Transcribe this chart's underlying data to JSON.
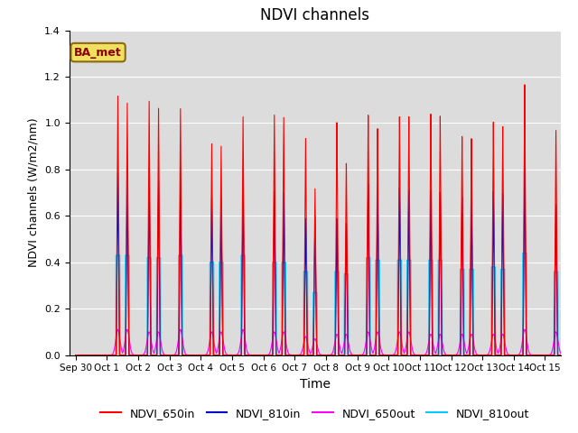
{
  "title": "NDVI channels",
  "xlabel": "Time",
  "ylabel": "NDVI channels (W/m2/nm)",
  "annotation": "BA_met",
  "ylim": [
    0,
    1.4
  ],
  "yticks": [
    0.0,
    0.2,
    0.4,
    0.6,
    0.8,
    1.0,
    1.2,
    1.4
  ],
  "colors": {
    "NDVI_650in": "#ff0000",
    "NDVI_810in": "#0000cc",
    "NDVI_650out": "#ff00ff",
    "NDVI_810out": "#00ccff"
  },
  "legend_labels": [
    "NDVI_650in",
    "NDVI_810in",
    "NDVI_650out",
    "NDVI_810out"
  ],
  "bg_color": "#dcdcdc",
  "peaks_650in": [
    0,
    1.12,
    1.1,
    1.07,
    0.92,
    1.04,
    1.05,
    0.95,
    1.02,
    1.05,
    1.04,
    1.05,
    0.95,
    1.01,
    1.17,
    0.97
  ],
  "peaks_810in": [
    0,
    0.79,
    0.78,
    0.77,
    0.69,
    0.75,
    0.72,
    0.6,
    0.6,
    0.75,
    0.73,
    0.72,
    0.69,
    0.71,
    0.83,
    0.65
  ],
  "peaks_650out": [
    0,
    0.11,
    0.1,
    0.11,
    0.1,
    0.11,
    0.1,
    0.08,
    0.09,
    0.1,
    0.1,
    0.09,
    0.09,
    0.09,
    0.11,
    0.1
  ],
  "peaks_810out": [
    0,
    0.43,
    0.42,
    0.43,
    0.4,
    0.43,
    0.4,
    0.36,
    0.36,
    0.42,
    0.41,
    0.41,
    0.37,
    0.38,
    0.44,
    0.36
  ],
  "peak2_650in": [
    0,
    1.09,
    1.07,
    0.0,
    0.91,
    0.0,
    1.04,
    0.73,
    0.84,
    0.99,
    1.04,
    1.04,
    0.94,
    0.99,
    0.0,
    0.0
  ],
  "peak2_810in": [
    0,
    0.77,
    0.76,
    0.0,
    0.68,
    0.0,
    0.71,
    0.61,
    0.58,
    0.73,
    0.72,
    0.71,
    0.68,
    0.7,
    0.0,
    0.0
  ],
  "peak2_650out": [
    0,
    0.11,
    0.1,
    0.0,
    0.1,
    0.0,
    0.1,
    0.07,
    0.09,
    0.1,
    0.1,
    0.09,
    0.09,
    0.09,
    0.0,
    0.0
  ],
  "peak2_810out": [
    0,
    0.43,
    0.42,
    0.0,
    0.4,
    0.0,
    0.4,
    0.27,
    0.35,
    0.41,
    0.41,
    0.41,
    0.37,
    0.37,
    0.0,
    0.0
  ]
}
